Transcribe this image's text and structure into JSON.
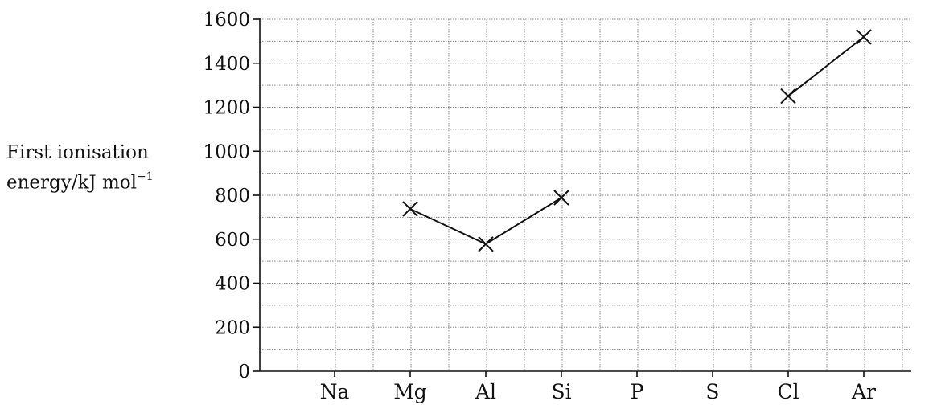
{
  "chart_data": {
    "type": "line",
    "title": "",
    "xlabel": "",
    "ylabel": "First ionisation energy/kJ mol⁻¹",
    "ylabel_lines": [
      "First ionisation",
      "energy/kJ mol",
      "−1"
    ],
    "categories": [
      "Na",
      "Mg",
      "Al",
      "Si",
      "P",
      "S",
      "Cl",
      "Ar"
    ],
    "ylim": [
      0,
      1600
    ],
    "yticks": [
      0,
      200,
      400,
      600,
      800,
      1000,
      1200,
      1400,
      1600
    ],
    "grid": true,
    "marker": "cross",
    "series": [
      {
        "values": [
          null,
          738,
          578,
          789,
          null,
          null,
          1251,
          1520
        ],
        "connected_segments": [
          [
            "Mg",
            "Al",
            "Si"
          ],
          [
            "Cl",
            "Ar"
          ]
        ]
      }
    ]
  }
}
